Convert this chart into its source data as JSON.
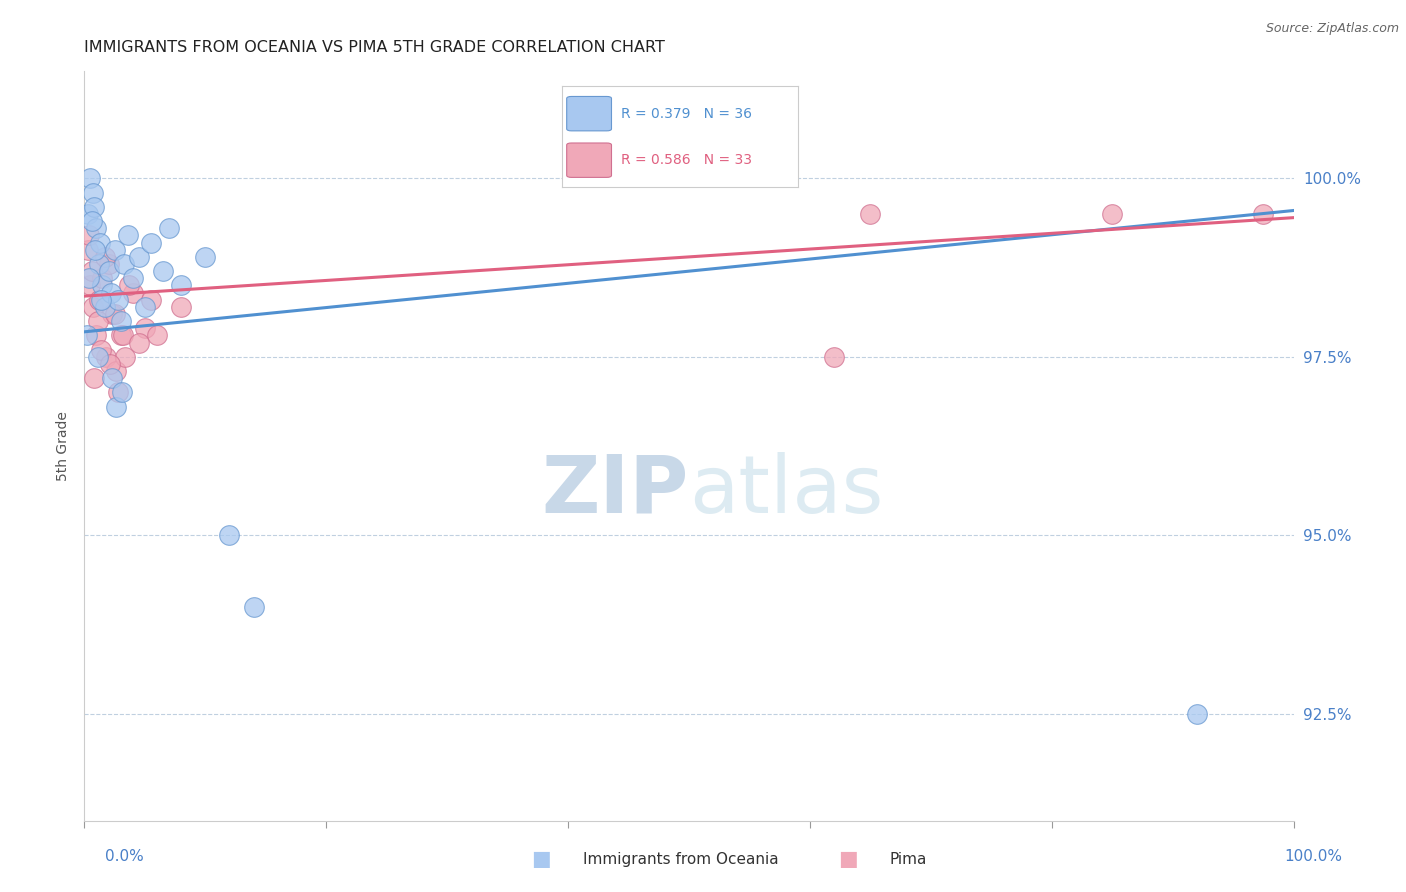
{
  "title": "IMMIGRANTS FROM OCEANIA VS PIMA 5TH GRADE CORRELATION CHART",
  "source_text": "Source: ZipAtlas.com",
  "ylabel": "5th Grade",
  "legend_blue_label": "Immigrants from Oceania",
  "legend_pink_label": "Pima",
  "legend_blue_r": "R = 0.379",
  "legend_blue_n": "N = 36",
  "legend_pink_r": "R = 0.586",
  "legend_pink_n": "N = 33",
  "blue_color": "#A8C8F0",
  "pink_color": "#F0A8B8",
  "blue_edge_color": "#6898D0",
  "pink_edge_color": "#D07090",
  "blue_line_color": "#5090D0",
  "pink_line_color": "#E06080",
  "xlim": [
    0.0,
    100.0
  ],
  "ylim": [
    91.0,
    101.5
  ],
  "yticks": [
    92.5,
    95.0,
    97.5,
    100.0
  ],
  "blue_scatter_x": [
    0.3,
    0.5,
    0.7,
    0.8,
    1.0,
    1.2,
    1.3,
    1.5,
    1.7,
    2.0,
    2.2,
    2.5,
    2.8,
    3.0,
    3.3,
    3.6,
    4.0,
    4.5,
    5.0,
    5.5,
    6.5,
    7.0,
    8.0,
    10.0,
    12.0,
    14.0,
    0.2,
    0.4,
    0.6,
    0.9,
    1.1,
    1.4,
    2.3,
    2.6,
    3.1,
    92.0
  ],
  "blue_scatter_y": [
    99.5,
    100.0,
    99.8,
    99.6,
    99.3,
    98.8,
    99.1,
    98.5,
    98.2,
    98.7,
    98.4,
    99.0,
    98.3,
    98.0,
    98.8,
    99.2,
    98.6,
    98.9,
    98.2,
    99.1,
    98.7,
    99.3,
    98.5,
    98.9,
    95.0,
    94.0,
    97.8,
    98.6,
    99.4,
    99.0,
    97.5,
    98.3,
    97.2,
    96.8,
    97.0,
    92.5
  ],
  "pink_scatter_x": [
    0.3,
    0.5,
    0.7,
    1.0,
    1.2,
    1.5,
    1.8,
    2.0,
    2.3,
    2.6,
    3.0,
    3.4,
    4.0,
    5.0,
    6.0,
    8.0,
    0.4,
    0.6,
    0.8,
    1.1,
    1.4,
    1.7,
    2.1,
    2.5,
    2.8,
    3.2,
    3.7,
    4.5,
    5.5,
    62.0,
    97.5,
    65.0,
    85.0
  ],
  "pink_scatter_y": [
    99.0,
    98.5,
    98.2,
    97.8,
    98.3,
    98.6,
    97.5,
    98.8,
    98.1,
    97.3,
    97.8,
    97.5,
    98.4,
    97.9,
    97.8,
    98.2,
    99.2,
    98.7,
    97.2,
    98.0,
    97.6,
    98.9,
    97.4,
    98.1,
    97.0,
    97.8,
    98.5,
    97.7,
    98.3,
    97.5,
    99.5,
    99.5,
    99.5
  ],
  "blue_line_x0": 0.0,
  "blue_line_x1": 100.0,
  "blue_line_y0": 97.85,
  "blue_line_y1": 99.55,
  "pink_line_x0": 0.0,
  "pink_line_x1": 100.0,
  "pink_line_y0": 98.35,
  "pink_line_y1": 99.45,
  "background_color": "#FFFFFF",
  "grid_color": "#C0D0E0",
  "watermark_zip_color": "#C8D8E8",
  "watermark_atlas_color": "#C8D8E8"
}
